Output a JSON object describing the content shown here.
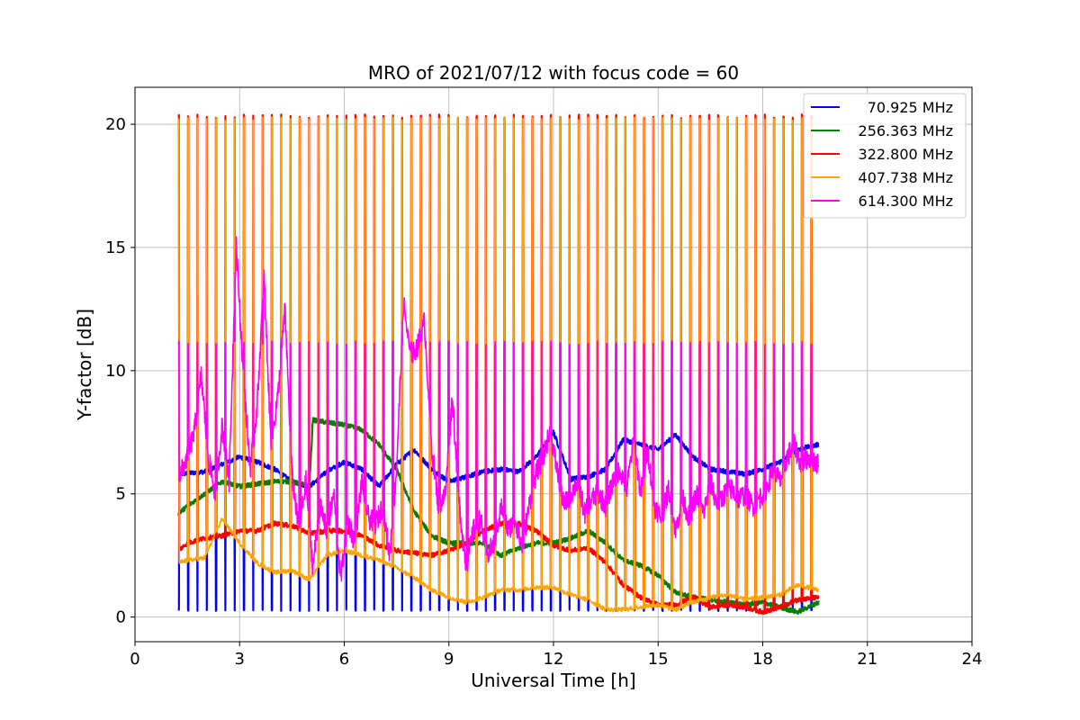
{
  "chart_data": {
    "type": "line",
    "title": "MRO of 2021/07/12 with focus code = 60",
    "xlabel": "Universal Time [h]",
    "ylabel": "Y-factor [dB]",
    "xlim": [
      0,
      24
    ],
    "ylim": [
      -1,
      21.5
    ],
    "x_ticks": [
      0,
      3,
      6,
      9,
      12,
      15,
      18,
      21,
      24
    ],
    "y_ticks": [
      0,
      5,
      10,
      15,
      20
    ],
    "grid": true,
    "legend_position": "top-right",
    "pulse_period_h": 0.2667,
    "series": [
      {
        "name": "70.925 MHz",
        "color": "#0000ff",
        "x": [
          1.25,
          2,
          2.5,
          3,
          3.5,
          4,
          4.5,
          5,
          5.5,
          6,
          6.5,
          7,
          7.5,
          8,
          8.5,
          9,
          9.5,
          10,
          10.5,
          11,
          11.5,
          12,
          12.5,
          13,
          13.5,
          14,
          14.5,
          15,
          15.5,
          16,
          16.5,
          17,
          17.5,
          18,
          18.5,
          19,
          19.6
        ],
        "values": [
          5.8,
          5.9,
          6.2,
          6.5,
          6.3,
          6.0,
          5.5,
          5.3,
          5.9,
          6.3,
          6.0,
          5.3,
          6.2,
          6.8,
          6.0,
          5.5,
          5.7,
          5.9,
          6.0,
          5.9,
          6.5,
          7.5,
          5.6,
          5.7,
          6.0,
          7.2,
          7.0,
          6.8,
          7.4,
          6.5,
          6.0,
          5.9,
          5.8,
          6.0,
          6.3,
          6.8,
          7.0
        ],
        "pulse_low": 0.25
      },
      {
        "name": "256.363 MHz",
        "color": "#008000",
        "x": [
          1.25,
          1.5,
          2,
          2.5,
          3,
          3.5,
          4,
          4.5,
          5,
          5.1,
          5.5,
          6,
          6.5,
          7,
          7.5,
          8,
          8.5,
          9,
          9.5,
          10,
          10.5,
          11,
          11.5,
          12,
          12.5,
          13,
          13.5,
          14,
          14.5,
          15,
          15.5,
          16,
          16.5,
          17,
          17.5,
          18,
          18.5,
          19,
          19.6
        ],
        "values": [
          4.2,
          4.5,
          5.0,
          5.5,
          5.3,
          5.4,
          5.5,
          5.5,
          5.3,
          8.0,
          7.9,
          7.8,
          7.6,
          7.0,
          6.0,
          4.3,
          3.3,
          3.0,
          3.0,
          3.0,
          2.5,
          2.8,
          3.0,
          3.0,
          3.2,
          3.5,
          3.0,
          2.3,
          2.1,
          1.7,
          1.0,
          0.8,
          0.7,
          0.6,
          0.5,
          0.6,
          0.4,
          0.2,
          0.6
        ],
        "pulse_low": null
      },
      {
        "name": "322.800 MHz",
        "color": "#ff0000",
        "x": [
          1.25,
          1.5,
          2,
          2.5,
          3,
          3.5,
          4,
          4.5,
          5,
          5.5,
          6,
          6.5,
          7,
          7.5,
          8,
          8.5,
          9,
          9.5,
          10,
          10.5,
          11,
          11.5,
          12,
          12.5,
          13,
          13.5,
          14,
          14.5,
          15,
          15.5,
          16,
          16.5,
          17,
          17.5,
          18,
          18.5,
          19,
          19.6
        ],
        "values": [
          2.7,
          3.0,
          3.2,
          3.3,
          3.5,
          3.5,
          3.8,
          3.7,
          3.4,
          3.5,
          3.5,
          3.3,
          2.9,
          2.7,
          2.6,
          2.5,
          2.7,
          3.0,
          3.5,
          3.8,
          3.8,
          3.5,
          2.9,
          2.7,
          2.8,
          2.2,
          1.3,
          0.8,
          0.5,
          0.5,
          0.8,
          0.4,
          0.5,
          0.4,
          0.2,
          0.4,
          0.7,
          0.8
        ],
        "pulse_high": 20.4
      },
      {
        "name": "407.738 MHz",
        "color": "#ffa500",
        "x": [
          1.25,
          1.5,
          2,
          2.5,
          3,
          3.5,
          4,
          4.5,
          5,
          5.5,
          6,
          6.5,
          7,
          7.5,
          8,
          8.5,
          9,
          9.5,
          10,
          10.5,
          11,
          11.5,
          12,
          12.5,
          13,
          13.5,
          14,
          14.5,
          15,
          15.5,
          16,
          16.5,
          17,
          17.5,
          18,
          18.5,
          19,
          19.6
        ],
        "values": [
          2.2,
          2.3,
          2.4,
          4.0,
          3.0,
          2.2,
          1.8,
          1.9,
          1.5,
          2.5,
          2.7,
          2.5,
          2.3,
          2.0,
          1.6,
          1.1,
          0.8,
          0.6,
          0.8,
          1.1,
          1.1,
          1.2,
          1.2,
          0.9,
          0.7,
          0.3,
          0.3,
          0.4,
          0.5,
          0.3,
          0.6,
          0.8,
          0.9,
          0.7,
          0.8,
          0.9,
          1.3,
          1.1
        ],
        "pulse_high": 20.3
      },
      {
        "name": "614.300 MHz",
        "color": "#ff00ff",
        "x": [
          1.25,
          1.5,
          1.7,
          1.9,
          2.1,
          2.3,
          2.5,
          2.7,
          2.9,
          3.1,
          3.3,
          3.5,
          3.7,
          3.9,
          4.1,
          4.3,
          4.5,
          4.7,
          4.9,
          5.1,
          5.3,
          5.5,
          5.7,
          5.9,
          6.1,
          6.3,
          6.5,
          6.7,
          6.9,
          7.1,
          7.3,
          7.5,
          7.7,
          7.9,
          8.1,
          8.3,
          8.5,
          8.7,
          8.9,
          9.1,
          9.3,
          9.5,
          9.7,
          9.9,
          10.1,
          10.3,
          10.5,
          10.7,
          10.9,
          11.1,
          11.3,
          11.5,
          11.7,
          11.9,
          12.1,
          12.3,
          12.5,
          12.7,
          12.9,
          13.1,
          13.3,
          13.5,
          13.7,
          13.9,
          14.1,
          14.3,
          14.5,
          14.7,
          14.9,
          15.1,
          15.3,
          15.5,
          15.7,
          15.9,
          16.1,
          16.3,
          16.5,
          16.7,
          16.9,
          17.1,
          17.3,
          17.5,
          17.7,
          17.9,
          18.1,
          18.3,
          18.5,
          18.7,
          18.9,
          19.1,
          19.3,
          19.6
        ],
        "values": [
          5.6,
          6.5,
          7.5,
          9.8,
          6.5,
          5.0,
          7.8,
          5.5,
          15.2,
          10.0,
          6.0,
          8.5,
          13.8,
          7.0,
          9.0,
          12.5,
          5.8,
          3.5,
          5.5,
          2.0,
          4.5,
          3.5,
          5.0,
          1.5,
          4.0,
          3.0,
          5.5,
          4.0,
          3.8,
          4.5,
          2.5,
          6.0,
          12.8,
          10.5,
          11.0,
          12.0,
          7.0,
          4.5,
          5.0,
          9.0,
          4.5,
          2.0,
          3.5,
          4.0,
          2.5,
          3.0,
          4.5,
          3.5,
          4.0,
          2.8,
          4.5,
          5.8,
          6.5,
          7.5,
          6.0,
          4.5,
          5.0,
          5.5,
          4.2,
          4.8,
          5.0,
          4.5,
          5.5,
          6.0,
          5.2,
          7.2,
          5.0,
          6.8,
          4.5,
          4.0,
          5.2,
          3.5,
          4.8,
          4.0,
          5.0,
          4.2,
          5.5,
          4.5,
          5.0,
          5.2,
          4.8,
          5.0,
          4.5,
          4.8,
          5.2,
          6.0,
          5.5,
          6.5,
          7.0,
          6.2,
          6.5,
          6.2
        ],
        "pulse_high": 11.2
      }
    ]
  }
}
